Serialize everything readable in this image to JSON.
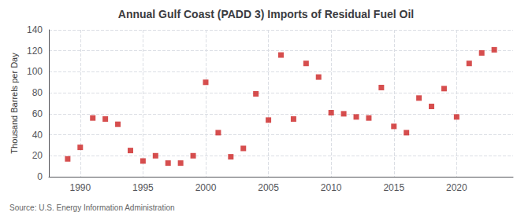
{
  "chart_data": {
    "type": "scatter",
    "title": "Annual Gulf Coast (PADD 3) Imports of Residual Fuel Oil",
    "ylabel": "Thousand Barrels per Day",
    "source": "Source: U.S. Energy Information Administration",
    "x": [
      1989,
      1990,
      1991,
      1992,
      1993,
      1994,
      1995,
      1996,
      1997,
      1998,
      1999,
      2000,
      2001,
      2002,
      2003,
      2004,
      2005,
      2006,
      2007,
      2008,
      2009,
      2010,
      2011,
      2012,
      2013,
      2014,
      2015,
      2016,
      2017,
      2018,
      2019,
      2020,
      2021,
      2022,
      2023
    ],
    "values": [
      17,
      28,
      56,
      55,
      50,
      25,
      15,
      20,
      13,
      13,
      20,
      90,
      42,
      19,
      27,
      79,
      54,
      116,
      55,
      108,
      95,
      61,
      60,
      57,
      56,
      85,
      48,
      42,
      75,
      67,
      84,
      57,
      108,
      118,
      121
    ],
    "color": "#cc2222",
    "marker": "square",
    "xlim": [
      1987.5,
      2024.5
    ],
    "xticks": [
      1990,
      1995,
      2000,
      2005,
      2010,
      2015,
      2020
    ],
    "ylim": [
      0,
      140
    ],
    "yticks": [
      0,
      20,
      40,
      60,
      80,
      100,
      120,
      140
    ],
    "grid": true
  }
}
